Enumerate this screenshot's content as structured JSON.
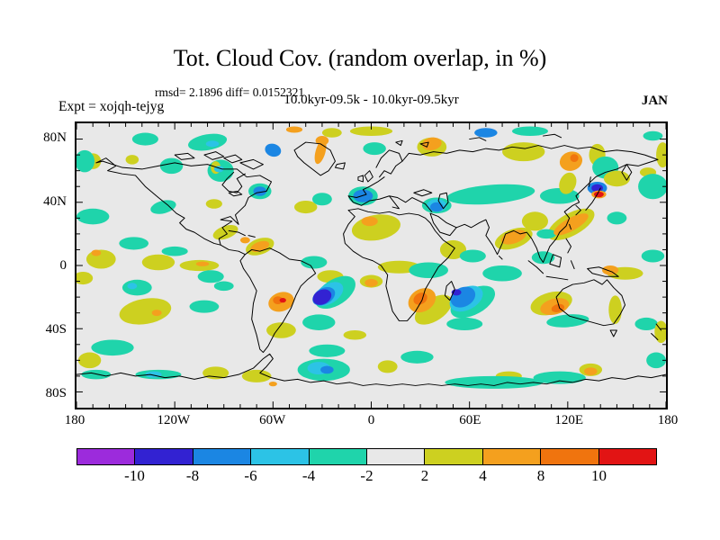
{
  "header": {
    "title": "Tot. Cloud Cov. (random overlap, in %)",
    "stats_line": "rmsd= 2.1896 diff= 0.0152321",
    "period_line": "10.0kyr-09.5k - 10.0kyr-09.5kyr",
    "experiment_label": "Expt = xojqh-tejyg",
    "month_label": "JAN"
  },
  "chart_data": {
    "type": "heatmap",
    "subtype": "filled-contour-anomaly-map",
    "title": "Tot. Cloud Cov. (random overlap, in %)",
    "stats": {
      "rmsd": 2.1896,
      "diff": 0.0152321
    },
    "comparison": "10.0kyr-09.5k - 10.0kyr-09.5kyr",
    "experiment": "xojqh-tejyg",
    "month": "JAN",
    "units": "%",
    "background": "#e8e8e8",
    "x_axis": {
      "range": [
        -180,
        180
      ],
      "major_ticks": [
        -180,
        -120,
        -60,
        0,
        60,
        120,
        180
      ],
      "labels": [
        "180",
        "120W",
        "60W",
        "0",
        "60E",
        "120E",
        "180"
      ],
      "minor_step": 10
    },
    "y_axis": {
      "range": [
        -90,
        90
      ],
      "major_ticks": [
        80,
        40,
        0,
        -40,
        -80
      ],
      "labels": [
        "80N",
        "40N",
        "0",
        "40S",
        "80S"
      ],
      "minor_step": 10
    },
    "colorbar": {
      "levels": [
        -10,
        -8,
        -6,
        -4,
        -2,
        2,
        4,
        8,
        10
      ],
      "labels": [
        "-10",
        "-8",
        "-6",
        "-4",
        "-2",
        "2",
        "4",
        "8",
        "10"
      ],
      "colors": [
        "#9c2bdc",
        "#3222d2",
        "#1b86e3",
        "#2cc3e6",
        "#1fd4ab",
        "#e8e8e8",
        "#cdd020",
        "#f4a01e",
        "#f0740e",
        "#e21414"
      ]
    },
    "anomaly_regions": [
      [
        -138,
        80,
        8,
        4,
        0,
        4
      ],
      [
        -100,
        78,
        12,
        5,
        -10,
        4
      ],
      [
        -170,
        66,
        5,
        5,
        0,
        6
      ],
      [
        -146,
        67,
        4,
        3,
        0,
        6
      ],
      [
        -24,
        84,
        6,
        3,
        0,
        6
      ],
      [
        0,
        85,
        13,
        3,
        0,
        6
      ],
      [
        2,
        74,
        7,
        4,
        0,
        4
      ],
      [
        37,
        75,
        9,
        6,
        0,
        6
      ],
      [
        93,
        72,
        13,
        6,
        0,
        6
      ],
      [
        97,
        85,
        11,
        3,
        0,
        4
      ],
      [
        138,
        70,
        5,
        7,
        0,
        6
      ],
      [
        143,
        62,
        8,
        7,
        0,
        4
      ],
      [
        172,
        82,
        6,
        3,
        0,
        4
      ],
      [
        178,
        70,
        4,
        8,
        0,
        6
      ],
      [
        -175,
        66,
        6,
        7,
        0,
        4
      ],
      [
        -122,
        63,
        7,
        5,
        0,
        4
      ],
      [
        -92,
        60,
        8,
        7,
        0,
        4
      ],
      [
        -95,
        62,
        3,
        4,
        0,
        6
      ],
      [
        -68,
        47,
        7,
        5,
        0,
        4
      ],
      [
        -127,
        37,
        8,
        4,
        -15,
        4
      ],
      [
        -170,
        31,
        10,
        5,
        0,
        4
      ],
      [
        -96,
        39,
        5,
        3,
        0,
        6
      ],
      [
        -40,
        37,
        7,
        4,
        0,
        6
      ],
      [
        -30,
        42,
        6,
        4,
        0,
        4
      ],
      [
        -5,
        44,
        9,
        6,
        0,
        4
      ],
      [
        40,
        38,
        9,
        5,
        0,
        4
      ],
      [
        73,
        45,
        27,
        6,
        -5,
        4
      ],
      [
        115,
        44,
        12,
        5,
        0,
        4
      ],
      [
        120,
        52,
        5,
        7,
        20,
        6
      ],
      [
        150,
        55,
        8,
        5,
        0,
        6
      ],
      [
        169,
        59,
        5,
        3,
        0,
        6
      ],
      [
        172,
        50,
        9,
        8,
        0,
        4
      ],
      [
        150,
        30,
        6,
        4,
        0,
        4
      ],
      [
        122,
        26,
        16,
        7,
        -30,
        6
      ],
      [
        3,
        24,
        15,
        8,
        -10,
        6
      ],
      [
        50,
        10,
        8,
        6,
        0,
        6
      ],
      [
        87,
        17,
        12,
        6,
        -20,
        6
      ],
      [
        100,
        28,
        8,
        6,
        0,
        6
      ],
      [
        -165,
        4,
        9,
        6,
        0,
        6
      ],
      [
        -145,
        14,
        9,
        4,
        0,
        4
      ],
      [
        -130,
        2,
        10,
        5,
        0,
        6
      ],
      [
        -120,
        9,
        8,
        3,
        0,
        4
      ],
      [
        -105,
        0,
        12,
        3.5,
        0,
        6
      ],
      [
        -98,
        -7,
        8,
        4,
        0,
        4
      ],
      [
        -89,
        21,
        8,
        4,
        -20,
        6
      ],
      [
        -68,
        12,
        9,
        5,
        -20,
        6
      ],
      [
        -35,
        2,
        8,
        4,
        0,
        4
      ],
      [
        -25,
        -7,
        8,
        4,
        0,
        6
      ],
      [
        0,
        -10,
        7,
        4,
        0,
        6
      ],
      [
        17,
        -1,
        13,
        4,
        0,
        6
      ],
      [
        35,
        -3,
        12,
        5,
        0,
        4
      ],
      [
        62,
        6,
        8,
        4,
        0,
        4
      ],
      [
        80,
        -5,
        12,
        5,
        0,
        4
      ],
      [
        105,
        5,
        7,
        4,
        0,
        4
      ],
      [
        107,
        20,
        6,
        3,
        0,
        4
      ],
      [
        155,
        -5,
        11,
        4,
        0,
        6
      ],
      [
        172,
        6,
        7,
        4,
        0,
        4
      ],
      [
        -176,
        -8,
        6,
        4,
        0,
        6
      ],
      [
        -22,
        -17,
        14,
        8,
        -35,
        4
      ],
      [
        38,
        -28,
        13,
        7,
        -35,
        6
      ],
      [
        62,
        -23,
        15,
        8,
        -30,
        4
      ],
      [
        -143,
        -14,
        9,
        5,
        0,
        4
      ],
      [
        -138,
        -29,
        16,
        8,
        -10,
        6
      ],
      [
        -102,
        -26,
        9,
        4,
        0,
        4
      ],
      [
        -90,
        -13,
        6,
        3,
        0,
        4
      ],
      [
        -55,
        -41,
        9,
        5,
        0,
        6
      ],
      [
        -32,
        -36,
        10,
        5,
        0,
        4
      ],
      [
        -10,
        -44,
        7,
        3,
        0,
        6
      ],
      [
        110,
        -24,
        13,
        7,
        -15,
        6
      ],
      [
        120,
        -35,
        13,
        4,
        -5,
        4
      ],
      [
        149,
        -28,
        4,
        9,
        0,
        6
      ],
      [
        168,
        -37,
        7,
        4,
        0,
        4
      ],
      [
        177,
        -42,
        4,
        7,
        0,
        6
      ],
      [
        57,
        -37,
        11,
        4,
        0,
        4
      ],
      [
        -158,
        -52,
        13,
        5,
        0,
        4
      ],
      [
        -172,
        -60,
        7,
        5,
        0,
        6
      ],
      [
        -168,
        -69,
        9,
        3,
        0,
        4
      ],
      [
        -130,
        -69,
        14,
        3,
        0,
        4
      ],
      [
        -95,
        -68,
        8,
        4,
        0,
        6
      ],
      [
        -70,
        -70,
        9,
        4,
        0,
        6
      ],
      [
        -29,
        -66,
        16,
        7,
        0,
        4
      ],
      [
        -27,
        -54,
        11,
        4,
        0,
        4
      ],
      [
        10,
        -64,
        6,
        4,
        0,
        6
      ],
      [
        28,
        -58,
        10,
        4,
        0,
        4
      ],
      [
        84,
        -70,
        8,
        3,
        0,
        6
      ],
      [
        134,
        -66,
        7,
        4,
        0,
        6
      ],
      [
        75,
        -74,
        30,
        4,
        0,
        4
      ],
      [
        115,
        -71,
        16,
        4,
        0,
        4
      ],
      [
        174,
        -60,
        6,
        5,
        0,
        4
      ],
      [
        -97,
        77,
        4,
        2,
        0,
        3
      ],
      [
        -93,
        61,
        3,
        2,
        0,
        3
      ],
      [
        -146,
        -13,
        3,
        2,
        0,
        3
      ],
      [
        -26,
        -18,
        10,
        6,
        -35,
        3
      ],
      [
        58,
        -21,
        11,
        7,
        -30,
        3
      ],
      [
        40,
        38,
        6,
        4,
        0,
        3
      ],
      [
        -32,
        -65,
        7,
        4,
        0,
        3
      ],
      [
        -133,
        -69,
        5,
        2,
        0,
        3
      ],
      [
        70,
        84,
        3,
        1.5,
        0,
        3
      ],
      [
        -60,
        73,
        5,
        4,
        20,
        2
      ],
      [
        -68,
        47,
        4,
        3,
        0,
        2
      ],
      [
        -5,
        44,
        6,
        4,
        0,
        2
      ],
      [
        40,
        37,
        4,
        3,
        0,
        2
      ],
      [
        70,
        84,
        7,
        3,
        0,
        2
      ],
      [
        -29,
        -19.5,
        7.5,
        5,
        -32,
        2
      ],
      [
        56,
        -20,
        8,
        6,
        -30,
        2
      ],
      [
        138,
        49,
        6,
        4,
        0,
        2
      ],
      [
        -27,
        -66,
        4,
        2.5,
        0,
        2
      ],
      [
        -30,
        -20,
        6,
        4.5,
        -30,
        1
      ],
      [
        52,
        -17,
        3,
        2,
        0,
        1
      ],
      [
        138,
        49,
        3.5,
        2.5,
        0,
        1
      ],
      [
        -47,
        86,
        5,
        2,
        0,
        7
      ],
      [
        -31,
        72,
        3,
        8,
        15,
        7
      ],
      [
        -30,
        79,
        4,
        3,
        0,
        7
      ],
      [
        37,
        77,
        6,
        4,
        -10,
        7
      ],
      [
        122,
        66,
        7,
        6,
        -20,
        7
      ],
      [
        122,
        26,
        12,
        4,
        -30,
        7
      ],
      [
        -1,
        28,
        5,
        3,
        0,
        7
      ],
      [
        87,
        18,
        8,
        4,
        -20,
        7
      ],
      [
        -168,
        8,
        3,
        2,
        0,
        7
      ],
      [
        -103,
        1,
        4,
        1.5,
        0,
        7
      ],
      [
        -77,
        16,
        3,
        2,
        0,
        7
      ],
      [
        -68,
        12,
        6,
        3,
        -20,
        7
      ],
      [
        0,
        -11,
        4,
        2.5,
        0,
        7
      ],
      [
        146,
        -3,
        5,
        3,
        0,
        7
      ],
      [
        -55,
        -23,
        8,
        6,
        -20,
        7
      ],
      [
        31,
        -22,
        9,
        7,
        -35,
        7
      ],
      [
        112,
        -26,
        9,
        5,
        -15,
        7
      ],
      [
        -131,
        -30,
        3,
        2,
        0,
        7
      ],
      [
        -60,
        -75,
        2.5,
        1.5,
        0,
        7
      ],
      [
        134,
        -67,
        4,
        2.5,
        0,
        7
      ],
      [
        139,
        45,
        4.5,
        2.5,
        0,
        7
      ],
      [
        124,
        68,
        2.5,
        2.5,
        0,
        8
      ],
      [
        -57,
        -22,
        3,
        2.5,
        0,
        8
      ],
      [
        30,
        -21,
        4.5,
        3.5,
        -35,
        8
      ],
      [
        114,
        -27,
        4,
        2.5,
        -15,
        8
      ],
      [
        139,
        45,
        3,
        1.8,
        0,
        9
      ],
      [
        -54,
        -22,
        2,
        1.5,
        0,
        9
      ]
    ],
    "basemap": {
      "stroke": "#000000",
      "paths": [
        "M12,25 L18,22 L24,27 L19,30 L28,32 L36,33 L42,40 L50,47 L56,52 L61,57 L66,60 L63,63 L67,67 L72,69 L78,73 L84,76 L88,77 L87,73 L92,70 L89,66 L95,62 L88,61 L94,59 L99,64 L97,58 L103,52 L105,47 L110,44 L116,43 L119,37 L112,33 L104,34 L98,29 L89,29 L80,26 L70,27 L60,25 L50,27 L40,29 L28,28 L16,24 L12,25",
        "M96,31 L92,35 L89,39 L93,43 L98,44 L101,40 L98,35 L103,32",
        "M93,44 L98,43 L101,45 L96,46 Z",
        "M93,68 L99,69 L103,71 M105,71 L109,72",
        "M88,77 L93,80 L99,81 L103,83 L100,87 L102,92 L106,98 L110,106 L108,114 L107,124 L110,134 L112,143 L114,145 L117,141 L121,133 L126,126 L131,117 L134,109 L137,103 L141,99 L146,95 L143,90 L137,87 L130,86 L124,82 L118,79 L112,81 L107,80 L103,83",
        "M133,17 L140,12 L149,13 L155,17 L158,24 L154,30 L149,33 L144,29 L139,25 L135,21 Z",
        "M159,26 L164,25 L163,29 L158,28 Z",
        "M176,33 L179,30 L181,34 L178,37 Z M172,34 L175,33 L175,37 L172,36 Z",
        "M183,28 L186,22 L191,17 L197,19 L199,24 L195,27 L192,32 L188,30 L185,34",
        "M188,34 L184,37 L179,40 L175,42 L177,45 L171,47 L166,46 L169,50 L174,52 L179,49 L185,48 L191,46 L194,50 L197,54 L193,53 M191,46 L196,47 L201,50 L205,47 L209,49 L213,51 L217,56",
        "M206,44 L212,42 L217,44 L211,46 Z",
        "M222,45 L226,44 L227,50 L224,54 L221,49 Z",
        "M166,55 L172,54 L178,56 L185,57 L191,56 L197,58 L203,57 L209,58 L213,60 L216,63 L219,68 L224,74 L231,79 L227,85 L221,91 L217,98 L213,105 L211,112 L207,119 L202,125 L197,125 L193,119 L191,111 L189,103 L190,96 L186,90 L181,87 L175,85 L169,81 L164,76 L163,70 L166,64 L170,59 L166,55 Z",
        "M226,103 L229,100 L231,105 L228,112 L225,109 Z",
        "M216,57 L221,59 L226,63 L232,66 L228,71 L222,69 L218,63 Z",
        "M232,66 L237,64 L241,66 L246,63 L250,61 L252,66 L250,71 L254,77 L257,83 L260,76 L262,70 L267,68 L271,70 L275,69 L278,73 L281,79 L283,85 L285,88 L287,83 L289,78 L293,73 L295,69 L299,65 L301,60 L298,56 L303,52 L307,50 L305,46 L309,42 L313,38 L317,34 L323,31 L330,29 L336,26 L339,31 L336,36 L333,31 L336,26 L343,27 L349,25 L355,23",
        "M355,23 L347,20 L339,18 L330,17 L322,18 L314,15 L306,16 L298,14 L290,16 L282,14 L274,16 L266,15 L258,17 L250,16 L242,18 L234,17 L226,19 L218,18 L210,20 L203,19 L199,24",
        "M305,52 L308,55 L305,58 M311,55 L315,50 L318,45 L320,41 M313,40 L314,34",
        "M301,64 L302,67 M299,73 L302,78 L300,82",
        "M276,87 L281,91 L285,95 M287,97 L294,98 L300,99 M291,83 L296,85 L295,91 L289,89 Z M302,87 L304,92 M312,92 L319,91 L327,94 L331,97 L323,97 L315,95 Z",
        "M310,101 L316,99 L321,102 L324,99 L328,104 L333,109 L335,115 L332,121 L328,127 L322,128 L315,126 L308,124 L301,122 L295,117 L293,110 L297,105 L303,102 Z M326,131 L330,131 L328,135 Z",
        "M354,127 L357,131 M351,133 L355,137",
        "M258,84 L260,86",
        "M195,12 L199,11 L198,14 Z M210,13 L215,12 L214,15 Z M285,8 L292,7 L296,9 M240,10 L246,9 L250,11",
        "M100,25 L108,23 L114,26 L108,29 Z M90,22 L97,20 L101,23 L95,25 Z M78,20 L85,18 L90,21 L83,23 Z M60,20 L68,19 L72,22 L64,23 Z",
        "M0,159 L9,158 L18,160 L27,158 L36,160 L45,159 L54,161 L63,160 L72,162 L81,160 L90,161 L99,159 L108,155 L114,149 L118,146 L120,149 L116,154 L112,158 L119,161 L127,163 L135,162 L143,164 L151,163 L159,165 L167,164 L175,166 L183,165 L191,166 L199,165 L207,166 L215,165 L223,166 L231,165 L239,166 L247,165 L255,166 L263,164 L271,165 L279,164 L287,165 L295,163 L303,164 L311,162 L319,163 L327,161 L335,162 L343,160 L351,161 L360,159"
      ]
    }
  }
}
